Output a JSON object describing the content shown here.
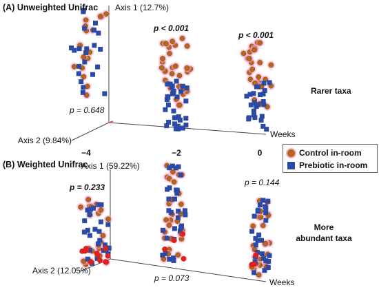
{
  "colors": {
    "control": "#b5651d",
    "control_halo": "#f4a6c6",
    "prebiotic": "#2a4aa6",
    "axis": "#444444",
    "highlight_red": "#e02020"
  },
  "legend": {
    "control_label": "Control in-room",
    "prebiotic_label": "Prebiotic in-room"
  },
  "panel_a": {
    "title": "(A) Unweighted Unifrac",
    "axis1_label": "Axis 1 (12.7%)",
    "axis2_label": "Axis 2 (9.84%)",
    "x_axis_label": "Weeks",
    "side_label": "Rarer taxa",
    "week_ticks": [
      "−4",
      "−2",
      "0"
    ],
    "pvalues": [
      "p = 0.648",
      "p < 0.001",
      "p < 0.001"
    ]
  },
  "panel_b": {
    "title": "(B) Weighted Unifrac",
    "axis1_label": "Axis 1 (59.22%)",
    "axis2_label": "Axis 2 (12.05%)",
    "x_axis_label": "Weeks",
    "side_label_line1": "More",
    "side_label_line2": "abundant taxa",
    "pvalues": [
      "p = 0.233",
      "p = 0.073",
      "p = 0.144"
    ]
  },
  "chart_data": [
    {
      "type": "scatter",
      "title": "(A) Unweighted Unifrac",
      "xlabel": "Weeks",
      "ylabel": "Axis 1 (12.7%)",
      "zlabel": "Axis 2 (9.84%)",
      "categories": [
        "−4",
        "−2",
        "0"
      ],
      "series": [
        {
          "name": "Control in-room",
          "marker": "circle"
        },
        {
          "name": "Prebiotic in-room",
          "marker": "square"
        }
      ],
      "group_pvalues": {
        "−4": "p = 0.648",
        "−2": "p < 0.001",
        "0": "p < 0.001"
      },
      "note": "Rarer taxa"
    },
    {
      "type": "scatter",
      "title": "(B) Weighted Unifrac",
      "xlabel": "Weeks",
      "ylabel": "Axis 1 (59.22%)",
      "zlabel": "Axis 2 (12.05%)",
      "categories": [
        "−4",
        "−2",
        "0"
      ],
      "series": [
        {
          "name": "Control in-room",
          "marker": "circle"
        },
        {
          "name": "Prebiotic in-room",
          "marker": "square"
        }
      ],
      "group_pvalues": {
        "−4": "p = 0.233",
        "−2": "p = 0.073",
        "0": "p = 0.144"
      },
      "note": "More abundant taxa"
    }
  ]
}
